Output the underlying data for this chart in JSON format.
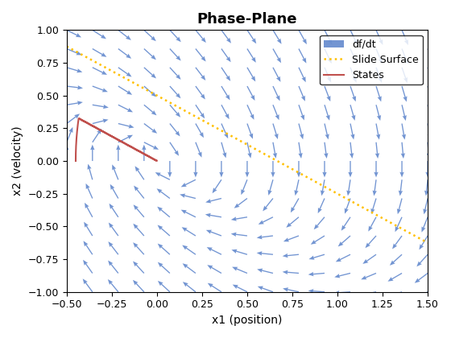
{
  "title": "Phase-Plane",
  "xlabel": "x1 (position)",
  "ylabel": "x2 (velocity)",
  "xlim": [
    -0.5,
    1.5
  ],
  "ylim": [
    -1.0,
    1.0
  ],
  "grid_n": 15,
  "quiver_color": "#4472C4",
  "state_color": "#C0504D",
  "slide_color": "#FFC000",
  "slide_slope": -0.75,
  "slide_intercept": 0.5,
  "legend_loc": "upper right",
  "title_fontsize": 13,
  "label_fontsize": 10,
  "legend_fontsize": 9
}
